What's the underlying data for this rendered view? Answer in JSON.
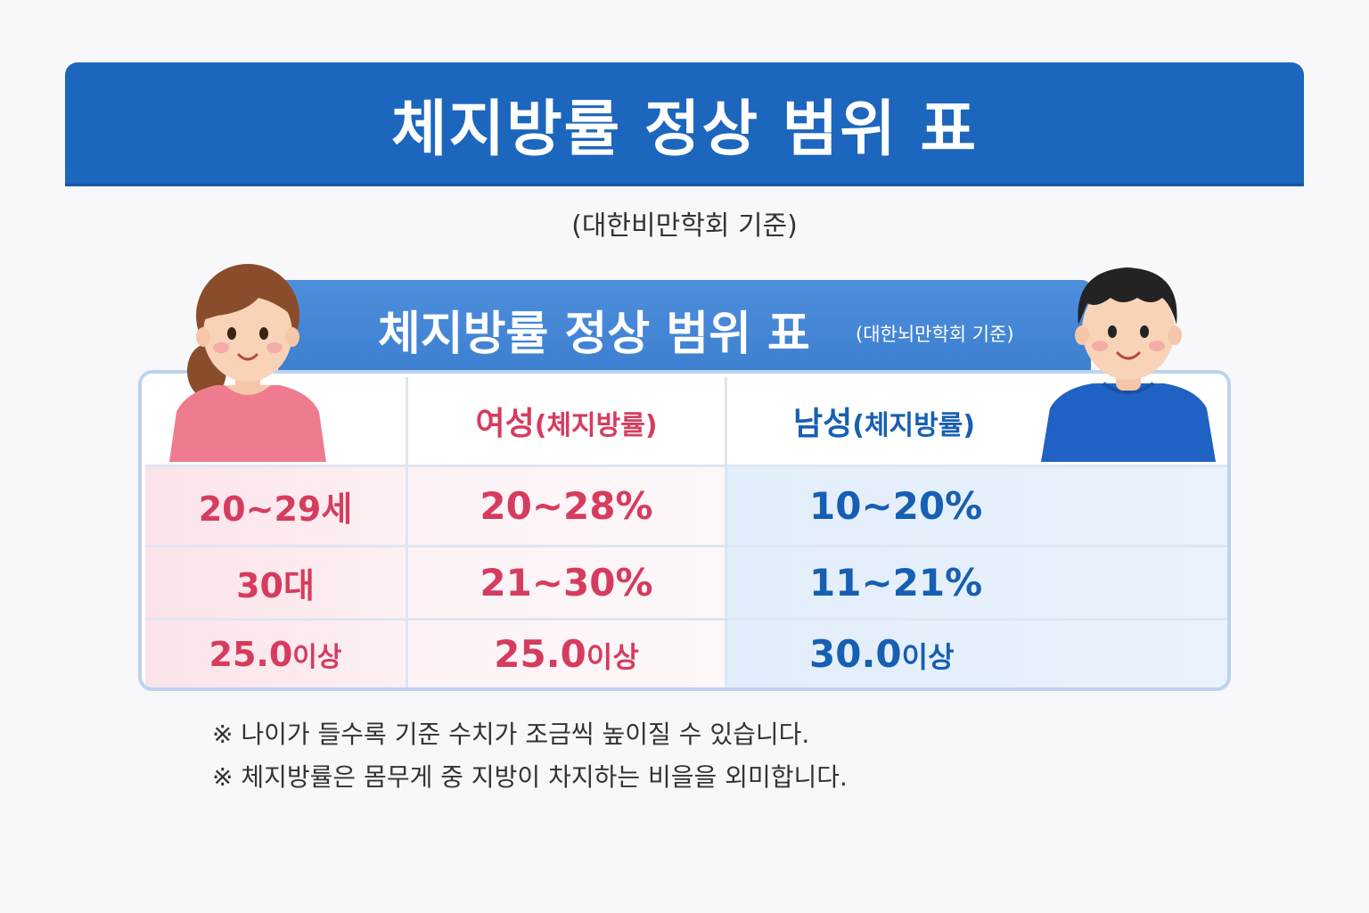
{
  "main_title": "체지방률 정상 범위 표",
  "subtitle": "(대한비만학회 기준)",
  "card": {
    "title": "체지방률 정상 범위 표",
    "note": "(대한뇌만학회 기준)"
  },
  "table": {
    "female_header": {
      "label": "여성",
      "sub": "(체지방률)"
    },
    "male_header": {
      "label": "남성",
      "sub": "(체지방률)"
    },
    "rows": [
      {
        "age": "20~29세",
        "age_suffix": "",
        "female": "20~28%",
        "female_suffix": "",
        "male": "10~20%",
        "male_suffix": ""
      },
      {
        "age": "30대",
        "age_suffix": "",
        "female": "21~30%",
        "female_suffix": "",
        "male": "11~21%",
        "male_suffix": ""
      },
      {
        "age": "25.0",
        "age_suffix": "이상",
        "female": "25.0",
        "female_suffix": "이상",
        "male": "30.0",
        "male_suffix": "이상"
      }
    ]
  },
  "notes": [
    "※ 나이가 들수록 기준 수치가 조금씩 높이질 수 있습니다.",
    "※ 체지방률은 몸무게 중 지방이 차지하는 비을을 외미합니다."
  ],
  "colors": {
    "banner": "#1c66bd",
    "female_text": "#d63c5e",
    "male_text": "#165fb3",
    "female_shirt": "#ef7b8e",
    "male_shirt": "#1f62c4"
  }
}
